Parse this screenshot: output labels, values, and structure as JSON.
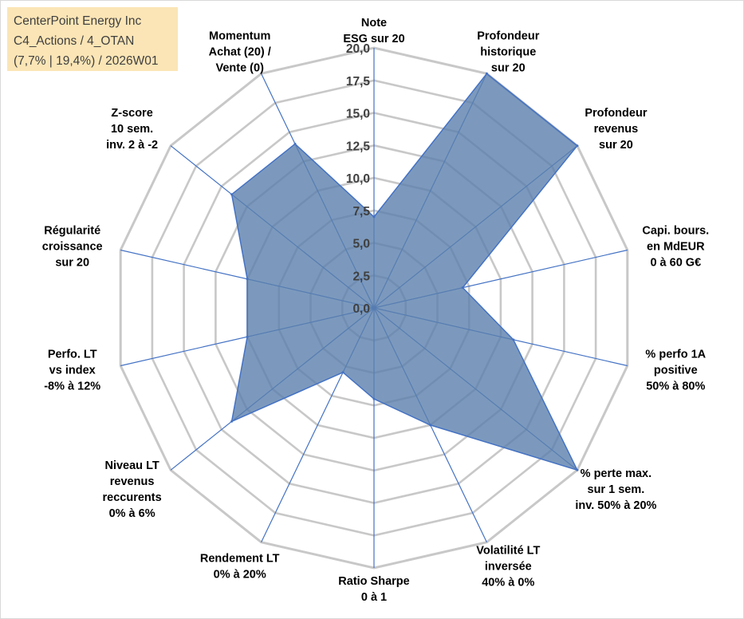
{
  "info": {
    "company": "CenterPoint Energy Inc",
    "portfolio": "C4_Actions / 4_OTAN",
    "stats": "(7,7% | 19,4%) / 2026W01"
  },
  "chart_data": {
    "type": "radar",
    "title": "CenterPoint Energy Inc",
    "rmin": 0,
    "rmax": 20,
    "tick_step": 2.5,
    "tick_labels": [
      "0,0",
      "2,5",
      "5,0",
      "7,5",
      "10,0",
      "12,5",
      "15,0",
      "17,5",
      "20,0"
    ],
    "axes": [
      {
        "label": [
          "Note",
          "ESG sur 20"
        ],
        "value": 7.0
      },
      {
        "label": [
          "Profondeur",
          "historique",
          "sur 20"
        ],
        "value": 20.0
      },
      {
        "label": [
          "Profondeur",
          "revenus",
          "sur 20"
        ],
        "value": 20.0
      },
      {
        "label": [
          "Capi. bours.",
          "en MdEUR",
          "0 à 60 G€"
        ],
        "value": 7.0
      },
      {
        "label": [
          "% perfo 1A",
          "positive",
          "50% à 80%"
        ],
        "value": 11.0
      },
      {
        "label": [
          "% perte max.",
          "sur 1 sem.",
          "inv. 50% à 20%"
        ],
        "value": 20.0
      },
      {
        "label": [
          "Volatilité LT",
          "inversée",
          "40% à 0%"
        ],
        "value": 10.0
      },
      {
        "label": [
          "Ratio Sharpe",
          "0 à 1"
        ],
        "value": 7.0
      },
      {
        "label": [
          "Rendement LT",
          "0% à 20%"
        ],
        "value": 5.5
      },
      {
        "label": [
          "Niveau LT",
          "revenus",
          "reccurents",
          "0% à 6%"
        ],
        "value": 14.0
      },
      {
        "label": [
          "Perfo. LT",
          "vs index",
          "-8% à 12%"
        ],
        "value": 10.0
      },
      {
        "label": [
          "Régularité",
          "croissance",
          "sur 20"
        ],
        "value": 10.0
      },
      {
        "label": [
          "Z-score",
          "10 sem.",
          "inv. 2 à -2"
        ],
        "value": 14.0
      },
      {
        "label": [
          "Momentum",
          "Achat (20) /",
          "Vente (0)"
        ],
        "value": 14.0
      }
    ],
    "series": [
      {
        "name": "CenterPoint Energy Inc",
        "fill": "#5b7fad",
        "fill_opacity": 0.8,
        "stroke": "#4472c4"
      }
    ],
    "grid": true,
    "grid_color": "#c8c8c8",
    "axis_color": "#4472c4"
  }
}
